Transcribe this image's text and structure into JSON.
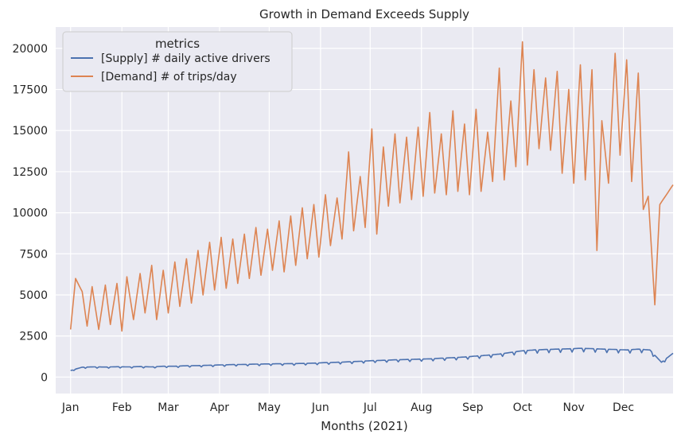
{
  "chart_data": {
    "type": "line",
    "title": "Growth in Demand Exceeds Supply",
    "xlabel": "Months (2021)",
    "ylabel": "",
    "x_ticks": [
      "Jan",
      "Feb",
      "Mar",
      "Apr",
      "May",
      "Jun",
      "Jul",
      "Aug",
      "Sep",
      "Oct",
      "Nov",
      "Dec"
    ],
    "y_ticks": [
      0,
      2500,
      5000,
      7500,
      10000,
      12500,
      15000,
      17500,
      20000
    ],
    "xlim": [
      "2020-12-23",
      "2021-12-31"
    ],
    "ylim": [
      -1000,
      21300
    ],
    "grid": true,
    "legend": {
      "title": "metrics",
      "position": "top-left"
    },
    "series": [
      {
        "name": "[Supply] # daily active drivers",
        "color": "#4c72b0",
        "weekly_points": [
          [
            "2021-01-01",
            400
          ],
          [
            "2021-01-08",
            600
          ],
          [
            "2021-01-15",
            620
          ],
          [
            "2021-01-22",
            610
          ],
          [
            "2021-01-29",
            630
          ],
          [
            "2021-02-05",
            620
          ],
          [
            "2021-02-12",
            640
          ],
          [
            "2021-02-19",
            620
          ],
          [
            "2021-02-26",
            660
          ],
          [
            "2021-03-05",
            660
          ],
          [
            "2021-03-12",
            690
          ],
          [
            "2021-03-19",
            700
          ],
          [
            "2021-03-26",
            720
          ],
          [
            "2021-04-02",
            740
          ],
          [
            "2021-04-09",
            760
          ],
          [
            "2021-04-16",
            770
          ],
          [
            "2021-04-23",
            790
          ],
          [
            "2021-04-30",
            800
          ],
          [
            "2021-05-07",
            810
          ],
          [
            "2021-05-14",
            820
          ],
          [
            "2021-05-21",
            830
          ],
          [
            "2021-05-28",
            850
          ],
          [
            "2021-06-04",
            880
          ],
          [
            "2021-06-11",
            900
          ],
          [
            "2021-06-18",
            930
          ],
          [
            "2021-06-25",
            960
          ],
          [
            "2021-07-02",
            1000
          ],
          [
            "2021-07-09",
            1020
          ],
          [
            "2021-07-16",
            1050
          ],
          [
            "2021-07-23",
            1070
          ],
          [
            "2021-07-30",
            1090
          ],
          [
            "2021-08-06",
            1110
          ],
          [
            "2021-08-13",
            1150
          ],
          [
            "2021-08-20",
            1180
          ],
          [
            "2021-08-27",
            1220
          ],
          [
            "2021-09-03",
            1280
          ],
          [
            "2021-09-10",
            1330
          ],
          [
            "2021-09-17",
            1400
          ],
          [
            "2021-09-24",
            1500
          ],
          [
            "2021-10-01",
            1600
          ],
          [
            "2021-10-08",
            1650
          ],
          [
            "2021-10-15",
            1680
          ],
          [
            "2021-10-22",
            1700
          ],
          [
            "2021-10-29",
            1720
          ],
          [
            "2021-11-05",
            1750
          ],
          [
            "2021-11-12",
            1730
          ],
          [
            "2021-11-19",
            1700
          ],
          [
            "2021-11-26",
            1680
          ],
          [
            "2021-12-03",
            1650
          ],
          [
            "2021-12-10",
            1700
          ],
          [
            "2021-12-17",
            1650
          ],
          [
            "2021-12-24",
            900
          ],
          [
            "2021-12-31",
            1450
          ]
        ],
        "weekend_dip": 0.12
      },
      {
        "name": "[Demand] # of trips/day",
        "color": "#dd8452",
        "weekly_points": [
          [
            "2021-01-01",
            2900
          ],
          [
            "2021-01-04",
            6000
          ],
          [
            "2021-01-08",
            5200
          ],
          [
            "2021-01-11",
            3100
          ],
          [
            "2021-01-14",
            5500
          ],
          [
            "2021-01-18",
            2900
          ],
          [
            "2021-01-22",
            5600
          ],
          [
            "2021-01-25",
            3200
          ],
          [
            "2021-01-29",
            5700
          ],
          [
            "2021-02-01",
            2800
          ],
          [
            "2021-02-04",
            6100
          ],
          [
            "2021-02-08",
            3500
          ],
          [
            "2021-02-12",
            6300
          ],
          [
            "2021-02-15",
            3900
          ],
          [
            "2021-02-19",
            6800
          ],
          [
            "2021-02-22",
            3500
          ],
          [
            "2021-02-26",
            6500
          ],
          [
            "2021-03-01",
            3900
          ],
          [
            "2021-03-05",
            7000
          ],
          [
            "2021-03-08",
            4300
          ],
          [
            "2021-03-12",
            7200
          ],
          [
            "2021-03-15",
            4500
          ],
          [
            "2021-03-19",
            7700
          ],
          [
            "2021-03-22",
            5000
          ],
          [
            "2021-03-26",
            8200
          ],
          [
            "2021-03-29",
            5300
          ],
          [
            "2021-04-02",
            8500
          ],
          [
            "2021-04-05",
            5400
          ],
          [
            "2021-04-09",
            8400
          ],
          [
            "2021-04-12",
            5700
          ],
          [
            "2021-04-16",
            8700
          ],
          [
            "2021-04-19",
            6000
          ],
          [
            "2021-04-23",
            9100
          ],
          [
            "2021-04-26",
            6200
          ],
          [
            "2021-04-30",
            9000
          ],
          [
            "2021-05-03",
            6500
          ],
          [
            "2021-05-07",
            9500
          ],
          [
            "2021-05-10",
            6400
          ],
          [
            "2021-05-14",
            9800
          ],
          [
            "2021-05-17",
            6800
          ],
          [
            "2021-05-21",
            10300
          ],
          [
            "2021-05-24",
            7200
          ],
          [
            "2021-05-28",
            10500
          ],
          [
            "2021-05-31",
            7300
          ],
          [
            "2021-06-04",
            11100
          ],
          [
            "2021-06-07",
            8000
          ],
          [
            "2021-06-11",
            10900
          ],
          [
            "2021-06-14",
            8400
          ],
          [
            "2021-06-18",
            13700
          ],
          [
            "2021-06-21",
            8900
          ],
          [
            "2021-06-25",
            12200
          ],
          [
            "2021-06-28",
            9100
          ],
          [
            "2021-07-02",
            15100
          ],
          [
            "2021-07-05",
            8700
          ],
          [
            "2021-07-09",
            14000
          ],
          [
            "2021-07-12",
            10400
          ],
          [
            "2021-07-16",
            14800
          ],
          [
            "2021-07-19",
            10600
          ],
          [
            "2021-07-23",
            14600
          ],
          [
            "2021-07-26",
            10800
          ],
          [
            "2021-07-30",
            15200
          ],
          [
            "2021-08-02",
            11000
          ],
          [
            "2021-08-06",
            16100
          ],
          [
            "2021-08-09",
            11200
          ],
          [
            "2021-08-13",
            14800
          ],
          [
            "2021-08-16",
            11100
          ],
          [
            "2021-08-20",
            16200
          ],
          [
            "2021-08-23",
            11300
          ],
          [
            "2021-08-27",
            15400
          ],
          [
            "2021-08-30",
            11100
          ],
          [
            "2021-09-03",
            16300
          ],
          [
            "2021-09-06",
            11300
          ],
          [
            "2021-09-10",
            14900
          ],
          [
            "2021-09-13",
            11900
          ],
          [
            "2021-09-17",
            18800
          ],
          [
            "2021-09-20",
            12000
          ],
          [
            "2021-09-24",
            16800
          ],
          [
            "2021-09-27",
            12800
          ],
          [
            "2021-10-01",
            20400
          ],
          [
            "2021-10-04",
            12900
          ],
          [
            "2021-10-08",
            18700
          ],
          [
            "2021-10-11",
            13900
          ],
          [
            "2021-10-15",
            18200
          ],
          [
            "2021-10-18",
            13800
          ],
          [
            "2021-10-22",
            18600
          ],
          [
            "2021-10-25",
            12400
          ],
          [
            "2021-10-29",
            17500
          ],
          [
            "2021-11-01",
            11800
          ],
          [
            "2021-11-05",
            19000
          ],
          [
            "2021-11-08",
            12000
          ],
          [
            "2021-11-12",
            18700
          ],
          [
            "2021-11-15",
            7700
          ],
          [
            "2021-11-18",
            15600
          ],
          [
            "2021-11-22",
            11800
          ],
          [
            "2021-11-26",
            19700
          ],
          [
            "2021-11-29",
            13500
          ],
          [
            "2021-12-03",
            19300
          ],
          [
            "2021-12-06",
            11900
          ],
          [
            "2021-12-10",
            18500
          ],
          [
            "2021-12-13",
            10200
          ],
          [
            "2021-12-16",
            11000
          ],
          [
            "2021-12-20",
            4400
          ],
          [
            "2021-12-23",
            10500
          ],
          [
            "2021-12-31",
            11700
          ]
        ]
      }
    ]
  }
}
